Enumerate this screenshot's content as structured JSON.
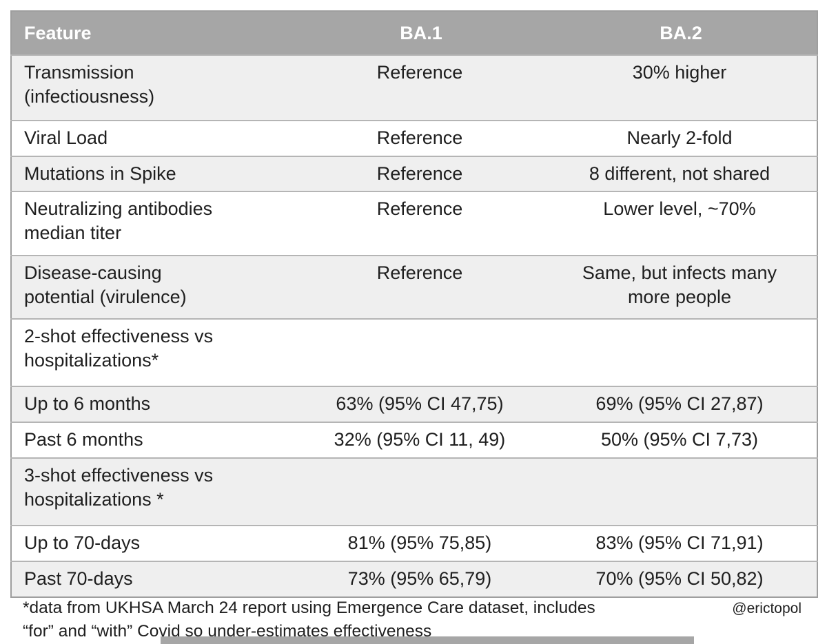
{
  "chart_data": {
    "type": "table",
    "title": "",
    "columns": [
      "Feature",
      "BA.1",
      "BA.2"
    ],
    "rows": [
      {
        "feature": "Transmission\n(infectiousness)",
        "ba1": "Reference",
        "ba2": "30% higher",
        "shaded": true
      },
      {
        "feature": "Viral Load",
        "ba1": "Reference",
        "ba2": "Nearly 2-fold",
        "shaded": false
      },
      {
        "feature": "Mutations in Spike",
        "ba1": "Reference",
        "ba2": "8 different, not shared",
        "shaded": true
      },
      {
        "feature": "Neutralizing antibodies\nmedian titer",
        "ba1": "Reference",
        "ba2": "Lower level, ~70%",
        "shaded": false
      },
      {
        "feature": "Disease-causing\npotential (virulence)",
        "ba1": "Reference",
        "ba2": "Same, but infects many\nmore people",
        "shaded": true
      },
      {
        "feature": "2-shot effectiveness vs\nhospitalizations*",
        "ba1": "",
        "ba2": "",
        "shaded": false
      },
      {
        "feature": "Up to 6 months",
        "ba1": "63% (95% CI 47,75)",
        "ba2": "69% (95% CI 27,87)",
        "shaded": true
      },
      {
        "feature": "Past 6 months",
        "ba1": "32% (95% CI 11, 49)",
        "ba2": "50%  (95% CI 7,73)",
        "shaded": false
      },
      {
        "feature": "3-shot effectiveness vs\nhospitalizations *",
        "ba1": "",
        "ba2": "",
        "shaded": true
      },
      {
        "feature": "Up to 70-days",
        "ba1": "81% (95% 75,85)",
        "ba2": "83% (95% CI 71,91)",
        "shaded": false
      },
      {
        "feature": "Past 70-days",
        "ba1": "73% (95% 65,79)",
        "ba2": "70% (95% CI 50,82)",
        "shaded": true
      }
    ],
    "footnote": "*data from UKHSA March 24 report using Emergence Care dataset, includes\n“for” and “with” Covid so under-estimates effectiveness",
    "credit": "@erictopol",
    "layout_hints": {
      "legend": "none",
      "grid": "row-separators",
      "shading": "alternating"
    }
  },
  "colors": {
    "header_bg": "#a6a6a6",
    "header_text": "#ffffff",
    "shaded_row": "#efefef",
    "row_border": "#b5b5b5",
    "body_text": "#1f1f1f",
    "bottom_bar": "#a6a6a6"
  }
}
